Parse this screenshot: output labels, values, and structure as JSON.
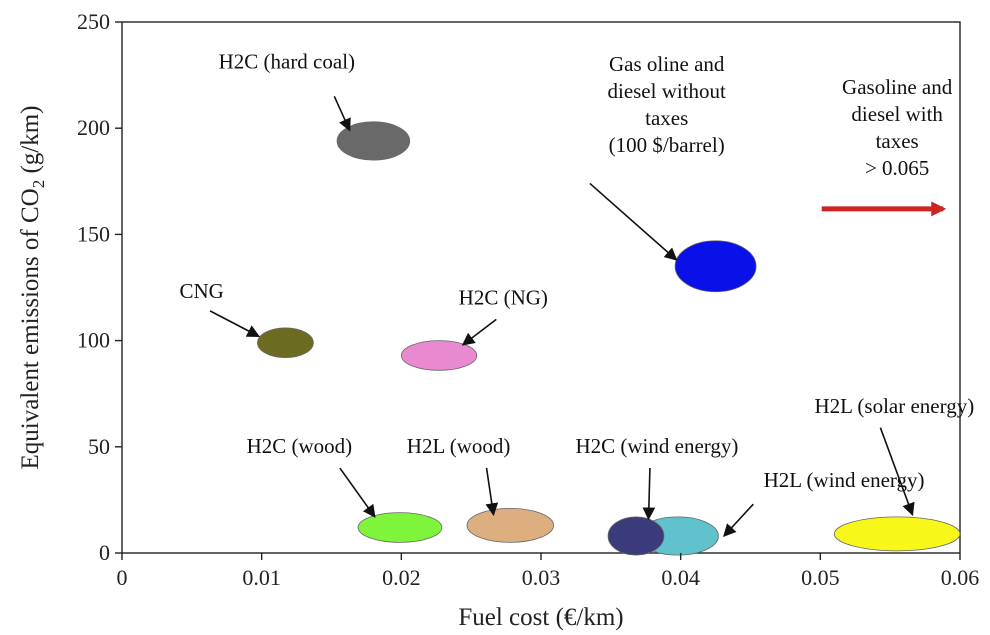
{
  "chart_data": {
    "type": "scatter",
    "title": "",
    "xlabel": "Fuel cost (€/km)",
    "ylabel_main": "Equivalent emissions of CO",
    "ylabel_sub": "2",
    "ylabel_unit": " (g/km)",
    "xlim": [
      0,
      0.06
    ],
    "ylim": [
      0,
      250
    ],
    "xticks": [
      0,
      0.01,
      0.02,
      0.03,
      0.04,
      0.05,
      0.06
    ],
    "xtick_labels": [
      "0",
      "0.01",
      "0.02",
      "0.03",
      "0.04",
      "0.05",
      "0.06"
    ],
    "yticks": [
      0,
      50,
      100,
      150,
      200,
      250
    ],
    "ytick_labels": [
      "0",
      "50",
      "100",
      "150",
      "200",
      "250"
    ],
    "grid": false,
    "legend": "none",
    "points": [
      {
        "label": "H2C (hard coal)",
        "x": 0.018,
        "y": 194,
        "x_spread": 0.0026,
        "y_spread": 9,
        "color": "#696969",
        "label_lines": [
          "H2C (hard coal)"
        ],
        "label_x": 0.0118,
        "label_y": 228,
        "arrow_from": [
          0.0152,
          215
        ],
        "arrow_to": [
          0.0163,
          199
        ]
      },
      {
        "label": "Gasoline and diesel without taxes (100 $/barrel)",
        "x": 0.0425,
        "y": 135,
        "x_spread": 0.0029,
        "y_spread": 12,
        "color": "#0a10e8",
        "label_lines": [
          "Gas oline and",
          "diesel without",
          "taxes",
          "(100 $/barrel)"
        ],
        "label_x": 0.039,
        "label_y": 227,
        "arrow_from": [
          0.0335,
          174
        ],
        "arrow_to": [
          0.0397,
          138
        ]
      },
      {
        "label": "CNG",
        "x": 0.0117,
        "y": 99,
        "x_spread": 0.002,
        "y_spread": 7,
        "color": "#6b6b22",
        "label_lines": [
          "CNG"
        ],
        "label_x": 0.0057,
        "label_y": 120,
        "arrow_from": [
          0.0063,
          114
        ],
        "arrow_to": [
          0.0098,
          102
        ]
      },
      {
        "label": "H2C (NG)",
        "x": 0.0227,
        "y": 93,
        "x_spread": 0.0027,
        "y_spread": 7,
        "color": "#e98ad0",
        "label_lines": [
          "H2C (NG)"
        ],
        "label_x": 0.0273,
        "label_y": 117,
        "arrow_from": [
          0.0268,
          110
        ],
        "arrow_to": [
          0.0244,
          98
        ]
      },
      {
        "label": "H2C (wood)",
        "x": 0.0199,
        "y": 12,
        "x_spread": 0.003,
        "y_spread": 7,
        "color": "#7ef53a",
        "label_lines": [
          "H2C (wood)"
        ],
        "label_x": 0.0127,
        "label_y": 47,
        "arrow_from": [
          0.0156,
          40
        ],
        "arrow_to": [
          0.0181,
          17
        ]
      },
      {
        "label": "H2L (wood)",
        "x": 0.0278,
        "y": 13,
        "x_spread": 0.0031,
        "y_spread": 8,
        "color": "#dcae80",
        "label_lines": [
          "H2L (wood)"
        ],
        "label_x": 0.0241,
        "label_y": 47,
        "arrow_from": [
          0.0261,
          40
        ],
        "arrow_to": [
          0.0266,
          18
        ]
      },
      {
        "label": "H2L (wind energy)",
        "x": 0.0398,
        "y": 8,
        "x_spread": 0.0029,
        "y_spread": 9,
        "color": "#5fc2cc",
        "label_lines": [
          "H2L (wind energy)"
        ],
        "label_x": 0.0517,
        "label_y": 31,
        "arrow_from": [
          0.0452,
          23
        ],
        "arrow_to": [
          0.0431,
          8
        ]
      },
      {
        "label": "H2C (wind energy)",
        "x": 0.0368,
        "y": 8,
        "x_spread": 0.002,
        "y_spread": 9,
        "color": "#3b3b7c",
        "label_lines": [
          "H2C (wind energy)"
        ],
        "label_x": 0.0383,
        "label_y": 47,
        "arrow_from": [
          0.0378,
          40
        ],
        "arrow_to": [
          0.0377,
          16
        ]
      },
      {
        "label": "H2L (solar energy)",
        "x": 0.0555,
        "y": 9,
        "x_spread": 0.0045,
        "y_spread": 8,
        "color": "#f7f71a",
        "label_lines": [
          "H2L (solar energy)"
        ],
        "label_x": 0.0553,
        "label_y": 66,
        "arrow_from": [
          0.0543,
          59
        ],
        "arrow_to": [
          0.0566,
          18
        ]
      }
    ],
    "annotations": [
      {
        "text_lines": [
          "Gasoline and",
          "diesel with",
          "taxes",
          "> 0.065"
        ],
        "x": 0.0555,
        "y": 216,
        "arrow_from": [
          0.0501,
          162
        ],
        "arrow_to": [
          0.0588,
          162
        ],
        "arrow_color": "#cc2424"
      }
    ]
  }
}
